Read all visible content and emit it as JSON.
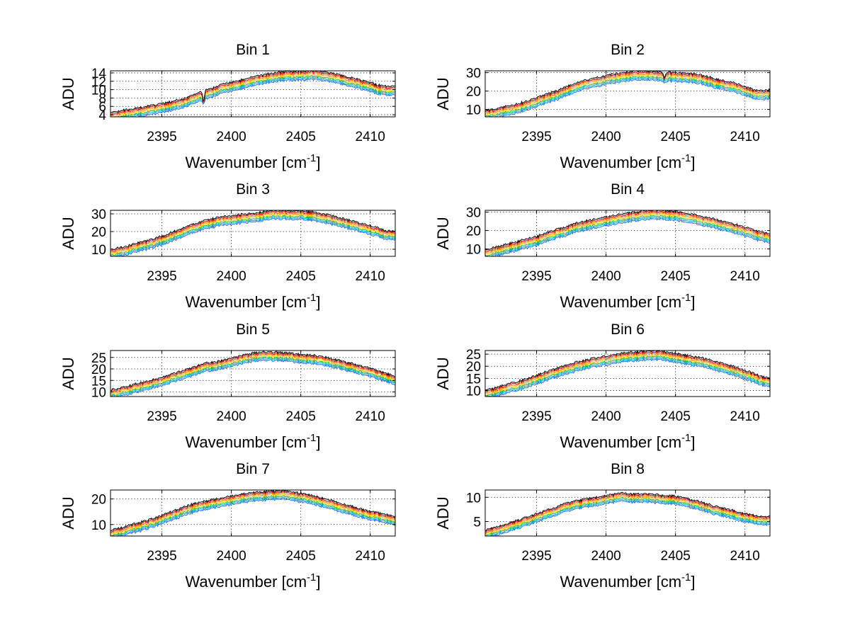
{
  "figure": {
    "series_colors": [
      "#1f6fff",
      "#00b0c8",
      "#22b14c",
      "#ffd000",
      "#ff7f00",
      "#d40000",
      "#000000"
    ]
  },
  "chart_data": [
    {
      "type": "line",
      "title": "Bin 1",
      "xlabel": "Wavenumber [cm",
      "xlabel_sup": "-1",
      "xlabel_end": "]",
      "ylabel": "ADU",
      "xlim": [
        2391.3,
        2411.8
      ],
      "ylim": [
        3.5,
        14.5
      ],
      "xticks": [
        2395,
        2400,
        2405,
        2410
      ],
      "yticks": [
        4,
        6,
        8,
        10,
        12,
        14
      ],
      "grid": true,
      "profile": {
        "x": [
          2391.3,
          2392,
          2393,
          2394,
          2395,
          2396,
          2397,
          2398,
          2399,
          2400,
          2401,
          2402,
          2403,
          2404,
          2405,
          2406,
          2407,
          2408,
          2409,
          2410,
          2411,
          2411.8
        ],
        "y": [
          3.6,
          3.9,
          4.4,
          5.0,
          5.6,
          6.3,
          7.3,
          8.6,
          9.8,
          10.7,
          11.5,
          12.3,
          12.9,
          13.3,
          13.4,
          13.5,
          13.0,
          12.4,
          11.5,
          10.6,
          9.7,
          9.9
        ]
      },
      "series_offset": 0.35,
      "dips": [
        {
          "x": 2398.0,
          "depth": 3.0
        }
      ]
    },
    {
      "type": "line",
      "title": "Bin 2",
      "xlabel": "Wavenumber [cm",
      "xlabel_sup": "-1",
      "xlabel_end": "]",
      "ylabel": "ADU",
      "xlim": [
        2391.3,
        2411.8
      ],
      "ylim": [
        6,
        31
      ],
      "xticks": [
        2395,
        2400,
        2405,
        2410
      ],
      "yticks": [
        10,
        20,
        30
      ],
      "grid": true,
      "profile": {
        "x": [
          2391.3,
          2392,
          2393,
          2394,
          2395,
          2396,
          2397,
          2398,
          2399,
          2400,
          2401,
          2402,
          2403,
          2404,
          2405,
          2406,
          2407,
          2408,
          2409,
          2410,
          2411,
          2411.8
        ],
        "y": [
          7,
          7.8,
          9.5,
          11.5,
          14,
          16.5,
          19.5,
          22.5,
          24.5,
          26,
          27.5,
          28.3,
          28.6,
          28,
          27.5,
          27.3,
          26,
          24,
          22.5,
          20,
          17.5,
          18.5
        ]
      },
      "series_offset": 0.8,
      "dips": [
        {
          "x": 2404.2,
          "depth": 4.0
        }
      ]
    },
    {
      "type": "line",
      "title": "Bin 3",
      "xlabel": "Wavenumber [cm",
      "xlabel_sup": "-1",
      "xlabel_end": "]",
      "ylabel": "ADU",
      "xlim": [
        2391.3,
        2411.8
      ],
      "ylim": [
        6,
        32
      ],
      "xticks": [
        2395,
        2400,
        2405,
        2410
      ],
      "yticks": [
        10,
        20,
        30
      ],
      "grid": true,
      "profile": {
        "x": [
          2391.3,
          2392,
          2393,
          2394,
          2395,
          2396,
          2397,
          2398,
          2399,
          2400,
          2401,
          2402,
          2403,
          2404,
          2405,
          2406,
          2407,
          2408,
          2409,
          2410,
          2411,
          2411.8
        ],
        "y": [
          7.5,
          8.5,
          10.5,
          12.5,
          15,
          18,
          21,
          23.5,
          25.5,
          26.5,
          27.5,
          28.5,
          29.5,
          29.5,
          29.5,
          28.5,
          27,
          25,
          23,
          21,
          18.5,
          17.5
        ]
      },
      "series_offset": 0.8,
      "dips": []
    },
    {
      "type": "line",
      "title": "Bin 4",
      "xlabel": "Wavenumber [cm",
      "xlabel_sup": "-1",
      "xlabel_end": "]",
      "ylabel": "ADU",
      "xlim": [
        2391.3,
        2411.8
      ],
      "ylim": [
        6,
        31
      ],
      "xticks": [
        2395,
        2400,
        2405,
        2410
      ],
      "yticks": [
        10,
        20,
        30
      ],
      "grid": true,
      "profile": {
        "x": [
          2391.3,
          2392,
          2393,
          2394,
          2395,
          2396,
          2397,
          2398,
          2399,
          2400,
          2401,
          2402,
          2403,
          2404,
          2405,
          2406,
          2407,
          2408,
          2409,
          2410,
          2411,
          2411.8
        ],
        "y": [
          7,
          8.5,
          10.5,
          12.5,
          14.5,
          17,
          19.5,
          22,
          23.5,
          25,
          26.5,
          27.5,
          28.5,
          28.5,
          28,
          27,
          25,
          23.5,
          21.5,
          19.5,
          17,
          16
        ]
      },
      "series_offset": 0.8,
      "dips": []
    },
    {
      "type": "line",
      "title": "Bin 5",
      "xlabel": "Wavenumber [cm",
      "xlabel_sup": "-1",
      "xlabel_end": "]",
      "ylabel": "ADU",
      "xlim": [
        2391.3,
        2411.8
      ],
      "ylim": [
        8,
        28
      ],
      "xticks": [
        2395,
        2400,
        2405,
        2410
      ],
      "yticks": [
        10,
        15,
        20,
        25
      ],
      "grid": true,
      "profile": {
        "x": [
          2391.3,
          2392,
          2393,
          2394,
          2395,
          2396,
          2397,
          2398,
          2399,
          2400,
          2401,
          2402,
          2403,
          2404,
          2405,
          2406,
          2407,
          2408,
          2409,
          2410,
          2411,
          2411.8
        ],
        "y": [
          9,
          9.8,
          11.5,
          13,
          14.5,
          16.5,
          18.5,
          20.5,
          21.5,
          23,
          24.5,
          25.5,
          25.5,
          25.2,
          24.5,
          24,
          23,
          21.5,
          20,
          18.5,
          16.5,
          15
        ]
      },
      "series_offset": 0.6,
      "dips": []
    },
    {
      "type": "line",
      "title": "Bin 6",
      "xlabel": "Wavenumber [cm",
      "xlabel_sup": "-1",
      "xlabel_end": "]",
      "ylabel": "ADU",
      "xlim": [
        2391.3,
        2411.8
      ],
      "ylim": [
        7.5,
        26.5
      ],
      "xticks": [
        2395,
        2400,
        2405,
        2410
      ],
      "yticks": [
        10,
        15,
        20,
        25
      ],
      "grid": true,
      "profile": {
        "x": [
          2391.3,
          2392,
          2393,
          2394,
          2395,
          2396,
          2397,
          2398,
          2399,
          2400,
          2401,
          2402,
          2403,
          2404,
          2405,
          2406,
          2407,
          2408,
          2409,
          2410,
          2411,
          2411.8
        ],
        "y": [
          8.2,
          9.3,
          11,
          12.5,
          14.5,
          16.5,
          18.5,
          20,
          21.5,
          22.5,
          23.5,
          24,
          24.5,
          24.5,
          23.5,
          22.5,
          21.5,
          20,
          18.5,
          16.5,
          14.5,
          13
        ]
      },
      "series_offset": 0.6,
      "dips": []
    },
    {
      "type": "line",
      "title": "Bin 7",
      "xlabel": "Wavenumber [cm",
      "xlabel_sup": "-1",
      "xlabel_end": "]",
      "ylabel": "ADU",
      "xlim": [
        2391.3,
        2411.8
      ],
      "ylim": [
        5.5,
        23.5
      ],
      "xticks": [
        2395,
        2400,
        2405,
        2410
      ],
      "yticks": [
        10,
        20
      ],
      "grid": true,
      "profile": {
        "x": [
          2391.3,
          2392,
          2393,
          2394,
          2395,
          2396,
          2397,
          2398,
          2399,
          2400,
          2401,
          2402,
          2403,
          2404,
          2405,
          2406,
          2407,
          2408,
          2409,
          2410,
          2411,
          2411.8
        ],
        "y": [
          6.2,
          7,
          8.5,
          10,
          12,
          14,
          16,
          17.5,
          18.5,
          19.5,
          20.5,
          21,
          21.5,
          21.5,
          20.5,
          19.5,
          18,
          16.5,
          15,
          13.5,
          12.5,
          11.5
        ]
      },
      "series_offset": 0.55,
      "dips": []
    },
    {
      "type": "line",
      "title": "Bin 8",
      "xlabel": "Wavenumber [cm",
      "xlabel_sup": "-1",
      "xlabel_end": "]",
      "ylabel": "ADU",
      "xlim": [
        2391.3,
        2411.8
      ],
      "ylim": [
        2,
        11.5
      ],
      "xticks": [
        2395,
        2400,
        2405,
        2410
      ],
      "yticks": [
        5,
        10
      ],
      "grid": true,
      "profile": {
        "x": [
          2391.3,
          2392,
          2393,
          2394,
          2395,
          2396,
          2397,
          2398,
          2399,
          2400,
          2401,
          2402,
          2403,
          2404,
          2405,
          2406,
          2407,
          2408,
          2409,
          2410,
          2411,
          2411.8
        ],
        "y": [
          2.4,
          3,
          3.8,
          4.8,
          5.8,
          6.8,
          7.8,
          8.5,
          9,
          9.5,
          10,
          9.8,
          9.8,
          9.6,
          9.4,
          8.8,
          8,
          7.2,
          6.5,
          5.8,
          5.3,
          5.2
        ]
      },
      "series_offset": 0.28,
      "dips": []
    }
  ]
}
